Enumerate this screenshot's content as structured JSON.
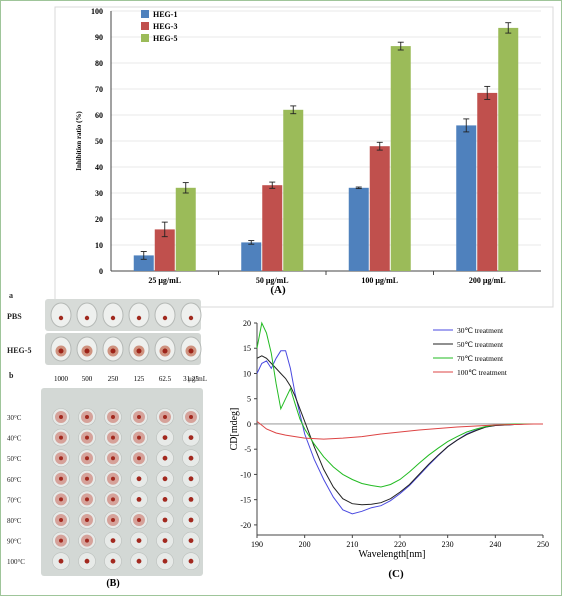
{
  "panel_labels": {
    "a_panel": "(A)",
    "b_panel": "(B)",
    "c_panel": "(C)"
  },
  "chart_data": [
    {
      "type": "bar",
      "categories": [
        "25 μg/mL",
        "50 μg/mL",
        "100 μg/mL",
        "200 μg/mL"
      ],
      "series": [
        {
          "name": "HEG-1",
          "color": "#4f81bd",
          "values": [
            6,
            11,
            32,
            56
          ],
          "errors": [
            1.5,
            0.7,
            0.3,
            2.5
          ]
        },
        {
          "name": "HEG-3",
          "color": "#c0504d",
          "values": [
            16,
            33,
            48,
            68.5
          ],
          "errors": [
            2.8,
            1.2,
            1.5,
            2.5
          ]
        },
        {
          "name": "HEG-5",
          "color": "#9bbb59",
          "values": [
            32,
            62,
            86.5,
            93.5
          ],
          "errors": [
            2,
            1.5,
            1.5,
            2
          ]
        }
      ],
      "ylabel": "Inhibition ratio (%)",
      "ylim": [
        0,
        100
      ],
      "yticks": [
        0,
        10,
        20,
        30,
        40,
        50,
        60,
        70,
        80,
        90,
        100
      ],
      "legend_position": "top-left"
    },
    {
      "type": "line",
      "xlabel": "Wavelength[nm]",
      "ylabel": "CD[mdeg]",
      "xlim": [
        190,
        250
      ],
      "ylim": [
        -22,
        20
      ],
      "xticks": [
        190,
        200,
        210,
        220,
        230,
        240,
        250
      ],
      "yticks": [
        20,
        15,
        10,
        5,
        0,
        -5,
        -10,
        -15,
        -20
      ],
      "legend_position": "top-right",
      "series": [
        {
          "name": "30℃ treatment",
          "color": "#4a4ae0",
          "x": [
            190,
            191,
            192,
            193,
            194,
            195,
            196,
            197,
            198,
            199,
            200,
            202,
            204,
            206,
            208,
            210,
            212,
            214,
            216,
            218,
            220,
            222,
            224,
            226,
            228,
            230,
            232,
            234,
            236,
            238,
            240,
            242,
            244,
            246,
            248,
            250
          ],
          "y": [
            10,
            12,
            12.5,
            11,
            13,
            14.5,
            14.5,
            11,
            6,
            2,
            -2,
            -7,
            -11,
            -14.5,
            -17,
            -17.8,
            -17.3,
            -16.6,
            -16.2,
            -15.2,
            -13.8,
            -12.2,
            -10.2,
            -8.2,
            -6.3,
            -4.5,
            -3.2,
            -2,
            -1.2,
            -0.6,
            -0.3,
            -0.2,
            -0.1,
            0,
            0,
            0
          ]
        },
        {
          "name": "50℃ treatment",
          "color": "#222222",
          "x": [
            190,
            191,
            192,
            193,
            194,
            195,
            196,
            197,
            198,
            199,
            200,
            202,
            204,
            206,
            208,
            210,
            212,
            214,
            216,
            218,
            220,
            222,
            224,
            226,
            228,
            230,
            232,
            234,
            236,
            238,
            240,
            242,
            244,
            246,
            248,
            250
          ],
          "y": [
            13,
            13.5,
            13,
            12,
            11,
            10,
            9,
            7.5,
            5.5,
            3,
            0.5,
            -4.5,
            -9,
            -12.5,
            -14.8,
            -15.8,
            -16,
            -15.9,
            -15.6,
            -14.8,
            -13.5,
            -12,
            -10,
            -8,
            -6.2,
            -4.5,
            -3.2,
            -2.1,
            -1.3,
            -0.6,
            -0.3,
            -0.2,
            -0.1,
            0,
            0,
            0
          ]
        },
        {
          "name": "70℃ treatment",
          "color": "#22bb22",
          "x": [
            190,
            191,
            192,
            193,
            194,
            195,
            196,
            197,
            198,
            199,
            200,
            202,
            204,
            206,
            208,
            210,
            212,
            214,
            216,
            218,
            220,
            222,
            224,
            226,
            228,
            230,
            232,
            234,
            236,
            238,
            240,
            242,
            244,
            246,
            248,
            250
          ],
          "y": [
            15,
            20,
            18,
            14,
            8,
            3,
            5,
            7,
            4,
            1,
            -1,
            -4,
            -6.5,
            -8.5,
            -10,
            -11,
            -11.8,
            -12.2,
            -12.5,
            -12,
            -11,
            -9.5,
            -7.8,
            -6.2,
            -4.8,
            -3.5,
            -2.5,
            -1.6,
            -1,
            -0.5,
            -0.2,
            -0.1,
            0,
            0,
            0,
            0
          ]
        },
        {
          "name": "100℃ treatment",
          "color": "#dd4444",
          "x": [
            190,
            192,
            194,
            196,
            198,
            200,
            204,
            208,
            212,
            216,
            220,
            224,
            228,
            232,
            236,
            240,
            244,
            248,
            250
          ],
          "y": [
            0.5,
            -1,
            -1.8,
            -2.2,
            -2.5,
            -2.8,
            -3,
            -2.8,
            -2.5,
            -2,
            -1.6,
            -1.2,
            -0.9,
            -0.6,
            -0.4,
            -0.2,
            -0.1,
            0,
            0
          ]
        }
      ]
    }
  ],
  "assay": {
    "panel_a_letter": "a",
    "panel_b_letter": "b",
    "rows_a": [
      "PBS",
      "HEG-5"
    ],
    "concentrations": [
      "1000",
      "500",
      "250",
      "125",
      "62.5",
      "31.25"
    ],
    "unit": "μg/mL",
    "rows_b": [
      "30°C",
      "40°C",
      "50°C",
      "60°C",
      "70°C",
      "80°C",
      "90°C",
      "100°C"
    ]
  }
}
